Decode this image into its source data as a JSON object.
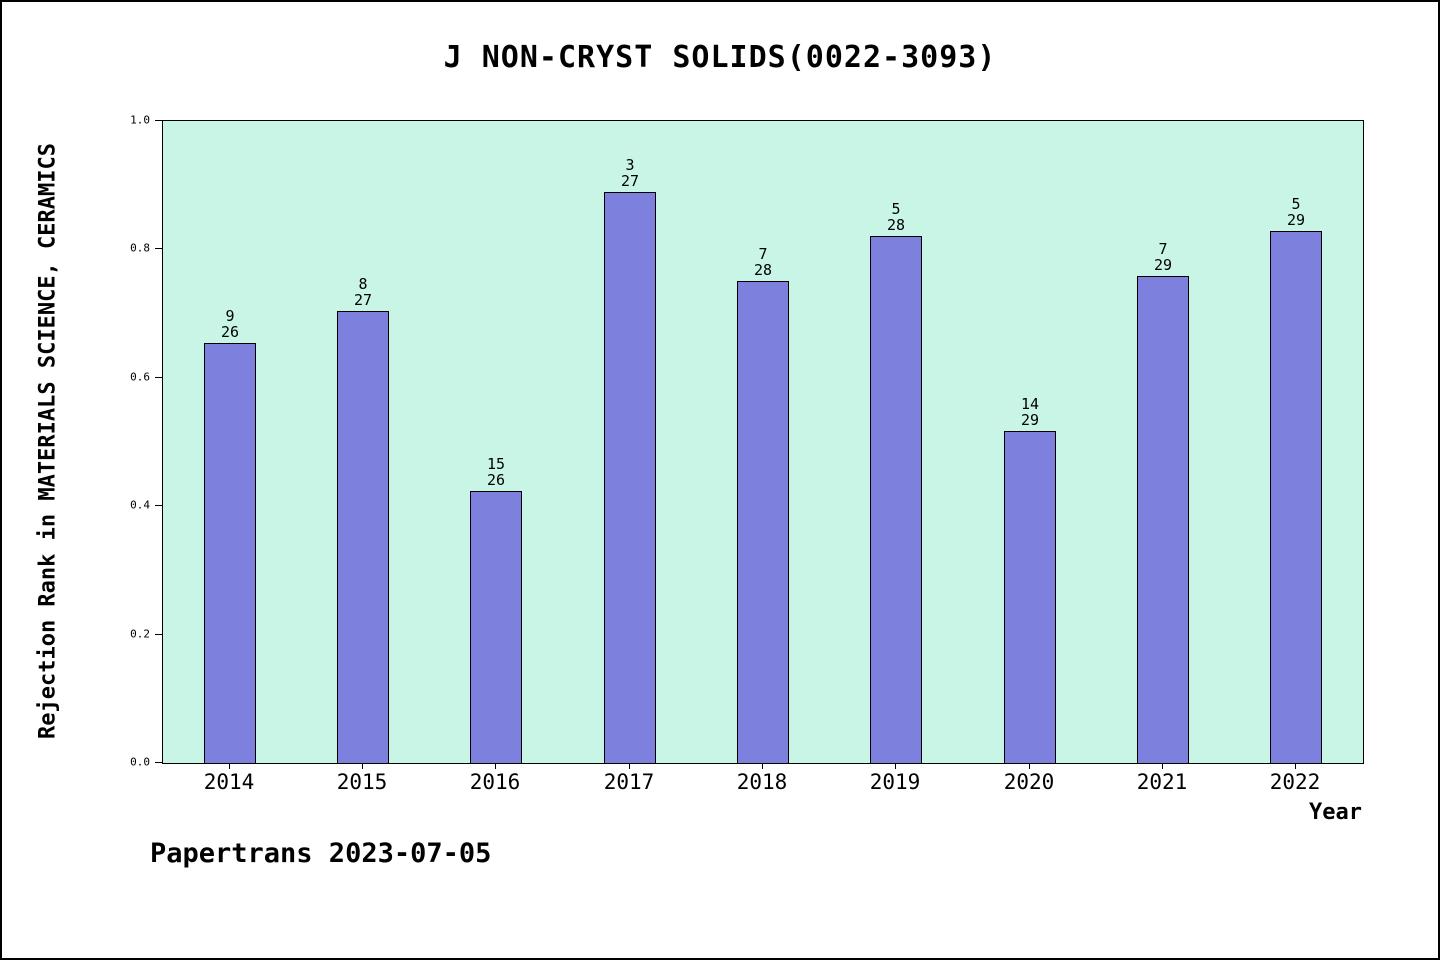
{
  "title": "J NON-CRYST SOLIDS(0022-3093)",
  "footer": "Papertrans 2023-07-05",
  "chart_data": {
    "type": "bar",
    "title": "J NON-CRYST SOLIDS(0022-3093)",
    "xlabel": "Year",
    "ylabel": "Rejection Rank in MATERIALS SCIENCE, CERAMICS",
    "categories": [
      "2014",
      "2015",
      "2016",
      "2017",
      "2018",
      "2019",
      "2020",
      "2021",
      "2022"
    ],
    "values": [
      0.654,
      0.704,
      0.423,
      0.889,
      0.75,
      0.821,
      0.517,
      0.759,
      0.828
    ],
    "bar_labels": [
      {
        "top": "9",
        "bottom": "26"
      },
      {
        "top": "8",
        "bottom": "27"
      },
      {
        "top": "15",
        "bottom": "26"
      },
      {
        "top": "3",
        "bottom": "27"
      },
      {
        "top": "7",
        "bottom": "28"
      },
      {
        "top": "5",
        "bottom": "28"
      },
      {
        "top": "14",
        "bottom": "29"
      },
      {
        "top": "7",
        "bottom": "29"
      },
      {
        "top": "5",
        "bottom": "29"
      }
    ],
    "yticks": [
      0.0,
      0.2,
      0.4,
      0.6,
      0.8,
      1.0
    ],
    "ytick_labels": [
      "0.0",
      "0.2",
      "0.4",
      "0.6",
      "0.8",
      "1.0"
    ],
    "ylim": [
      0,
      1
    ],
    "grid": false,
    "legend": "none",
    "colors": {
      "bar_fill": "#7d80dc",
      "bar_edge": "#000000",
      "plot_background": "#c9f5e6",
      "frame_border": "#000000"
    }
  }
}
